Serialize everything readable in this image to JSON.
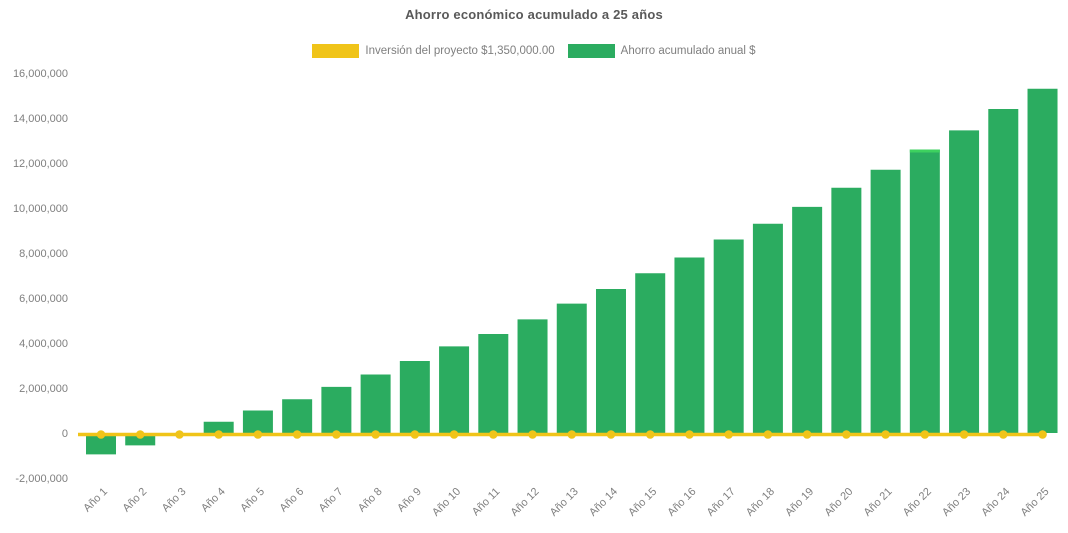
{
  "chart_data": {
    "type": "bar",
    "title": "Ahorro económico acumulado a 25 años",
    "legend_position": "top",
    "grid": false,
    "categories": [
      "Año 1",
      "Año 2",
      "Año 3",
      "Año 4",
      "Año 5",
      "Año 6",
      "Año 7",
      "Año 8",
      "Año 9",
      "Año 10",
      "Año 11",
      "Año 12",
      "Año 13",
      "Año 14",
      "Año 15",
      "Año 16",
      "Año 17",
      "Año 18",
      "Año 19",
      "Año 20",
      "Año 21",
      "Año 22",
      "Año 23",
      "Año 24",
      "Año 25"
    ],
    "series": [
      {
        "name": "Inversión del proyecto $1,350,000.00",
        "type": "line",
        "color": "#F0C419",
        "marker": "circle",
        "values": [
          0,
          0,
          0,
          0,
          0,
          0,
          0,
          0,
          0,
          0,
          0,
          0,
          0,
          0,
          0,
          0,
          0,
          0,
          0,
          0,
          0,
          0,
          0,
          0,
          0
        ]
      },
      {
        "name": "Ahorro acumulado anual $",
        "type": "bar",
        "color": "#2BAC60",
        "values": [
          -950000,
          -550000,
          0,
          500000,
          1000000,
          1500000,
          2050000,
          2600000,
          3200000,
          3850000,
          4400000,
          5050000,
          5750000,
          6400000,
          7100000,
          7800000,
          8600000,
          9300000,
          10050000,
          10900000,
          11700000,
          12600000,
          13450000,
          14400000,
          15300000
        ]
      }
    ],
    "y_axis": {
      "min": -2000000,
      "max": 16000000,
      "step": 2000000,
      "tick_labels": [
        "16,000,000",
        "14,000,000",
        "12,000,000",
        "10,000,000",
        "8,000,000",
        "6,000,000",
        "4,000,000",
        "2,000,000",
        "0",
        "-2,000,000"
      ]
    },
    "x_axis": {
      "label_rotation_deg": -45
    },
    "highlight": {
      "category": "Año 22",
      "cap_color": "#3DD15F"
    }
  }
}
